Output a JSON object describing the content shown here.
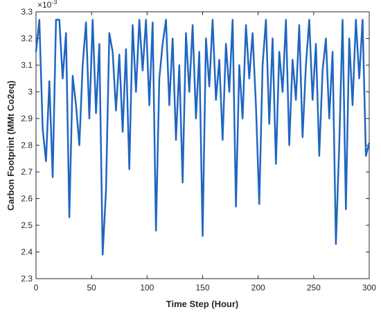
{
  "chart_data": {
    "type": "line",
    "xlabel": "Time Step (Hour)",
    "ylabel": "Carbon Footprint (MMt Co2eq)",
    "y_multiplier": {
      "base": "×10",
      "power": "-3"
    },
    "x": [
      0,
      3,
      6,
      9,
      12,
      15,
      18,
      21,
      24,
      27,
      30,
      33,
      36,
      39,
      42,
      45,
      48,
      51,
      54,
      57,
      60,
      63,
      66,
      69,
      72,
      75,
      78,
      81,
      84,
      87,
      90,
      93,
      96,
      99,
      102,
      105,
      108,
      111,
      114,
      117,
      120,
      123,
      126,
      129,
      132,
      135,
      138,
      141,
      144,
      147,
      150,
      153,
      156,
      159,
      162,
      165,
      168,
      171,
      174,
      177,
      180,
      183,
      186,
      189,
      192,
      195,
      198,
      201,
      204,
      207,
      210,
      213,
      216,
      219,
      222,
      225,
      228,
      231,
      234,
      237,
      240,
      243,
      246,
      249,
      252,
      255,
      258,
      261,
      264,
      267,
      270,
      273,
      276,
      279,
      282,
      285,
      288,
      291,
      294,
      297,
      300
    ],
    "series": [
      {
        "name": "Carbon Footprint",
        "color": "#1f66c1",
        "values": [
          3.15,
          3.27,
          2.86,
          2.74,
          3.04,
          2.68,
          3.27,
          3.27,
          3.05,
          3.22,
          2.53,
          3.06,
          2.95,
          2.8,
          3.1,
          3.26,
          2.9,
          3.27,
          2.92,
          3.18,
          2.39,
          2.63,
          3.22,
          3.15,
          2.93,
          3.14,
          2.85,
          3.16,
          2.71,
          3.25,
          3.0,
          3.27,
          3.08,
          3.27,
          2.95,
          3.26,
          2.48,
          3.05,
          3.18,
          3.27,
          2.95,
          3.2,
          2.82,
          3.1,
          2.66,
          3.22,
          3.0,
          3.25,
          2.9,
          3.15,
          2.46,
          3.2,
          3.02,
          3.27,
          2.97,
          3.12,
          2.82,
          3.18,
          3.0,
          3.27,
          2.57,
          3.1,
          2.9,
          3.25,
          3.05,
          3.22,
          2.95,
          2.58,
          3.1,
          3.27,
          2.88,
          3.2,
          2.73,
          3.15,
          3.0,
          3.27,
          2.8,
          3.12,
          2.97,
          3.25,
          2.83,
          3.1,
          3.27,
          2.97,
          3.18,
          2.76,
          3.08,
          3.2,
          2.9,
          3.15,
          2.43,
          2.8,
          3.27,
          2.56,
          3.2,
          2.95,
          3.27,
          3.05,
          3.27,
          2.76,
          2.81
        ]
      }
    ],
    "xlim": [
      0,
      300
    ],
    "xticks": [
      0,
      50,
      100,
      150,
      200,
      250,
      300
    ],
    "ylim": [
      2.3,
      3.3
    ],
    "yticks": [
      2.3,
      2.4,
      2.5,
      2.6,
      2.7,
      2.8,
      2.9,
      3,
      3.1,
      3.2,
      3.3
    ]
  }
}
